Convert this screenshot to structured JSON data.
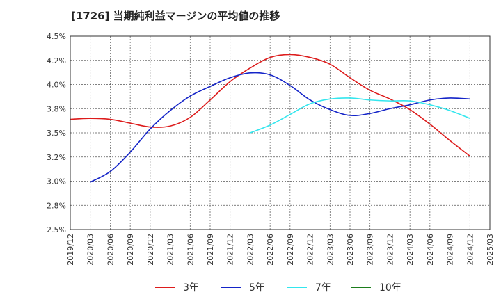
{
  "title": "[1726]  当期純利益マージンの平均値の推移",
  "chart_data": {
    "type": "line",
    "title": "[1726]  当期純利益マージンの平均値の推移",
    "x_ticks": [
      "2019/12",
      "2020/03",
      "2020/06",
      "2020/09",
      "2020/12",
      "2021/03",
      "2021/06",
      "2021/09",
      "2021/12",
      "2022/03",
      "2022/06",
      "2022/09",
      "2022/12",
      "2023/03",
      "2023/06",
      "2023/09",
      "2023/12",
      "2024/03",
      "2024/06",
      "2024/09",
      "2024/12",
      "2025/03"
    ],
    "y_ticks": [
      "2.5%",
      "2.8%",
      "3.0%",
      "3.2%",
      "3.5%",
      "3.8%",
      "4.0%",
      "4.2%",
      "4.5%"
    ],
    "y_tick_values": [
      2.5,
      2.75,
      3.0,
      3.25,
      3.5,
      3.75,
      4.0,
      4.25,
      4.5
    ],
    "ylim": [
      2.5,
      4.5
    ],
    "grid": true,
    "legend_position": "bottom",
    "series": [
      {
        "name": "3年",
        "color": "#dd1c1c",
        "x": [
          "2019/12",
          "2020/03",
          "2020/06",
          "2020/09",
          "2020/12",
          "2021/03",
          "2021/06",
          "2021/09",
          "2021/12",
          "2022/03",
          "2022/06",
          "2022/09",
          "2022/12",
          "2023/03",
          "2023/06",
          "2023/09",
          "2023/12",
          "2024/03",
          "2024/06",
          "2024/09",
          "2024/12"
        ],
        "values": [
          3.64,
          3.65,
          3.64,
          3.6,
          3.56,
          3.57,
          3.66,
          3.84,
          4.03,
          4.17,
          4.28,
          4.31,
          4.28,
          4.21,
          4.07,
          3.94,
          3.85,
          3.74,
          3.59,
          3.42,
          3.26
        ]
      },
      {
        "name": "5年",
        "color": "#1424c8",
        "x": [
          "2020/03",
          "2020/06",
          "2020/09",
          "2020/12",
          "2021/03",
          "2021/06",
          "2021/09",
          "2021/12",
          "2022/03",
          "2022/06",
          "2022/09",
          "2022/12",
          "2023/03",
          "2023/06",
          "2023/09",
          "2023/12",
          "2024/03",
          "2024/06",
          "2024/09",
          "2024/12"
        ],
        "values": [
          2.99,
          3.1,
          3.3,
          3.54,
          3.73,
          3.88,
          3.98,
          4.07,
          4.12,
          4.1,
          3.99,
          3.84,
          3.74,
          3.68,
          3.7,
          3.75,
          3.79,
          3.84,
          3.86,
          3.85
        ]
      },
      {
        "name": "7年",
        "color": "#33e6ee",
        "x": [
          "2022/03",
          "2022/06",
          "2022/09",
          "2022/12",
          "2023/03",
          "2023/06",
          "2023/09",
          "2023/12",
          "2024/03",
          "2024/06",
          "2024/09",
          "2024/12"
        ],
        "values": [
          3.5,
          3.58,
          3.69,
          3.8,
          3.85,
          3.86,
          3.84,
          3.83,
          3.83,
          3.79,
          3.73,
          3.65
        ]
      },
      {
        "name": "10年",
        "color": "#1c7d1c",
        "x": [],
        "values": []
      }
    ]
  }
}
